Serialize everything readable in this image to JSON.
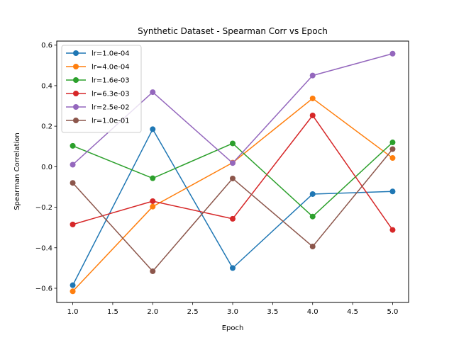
{
  "chart_data": {
    "type": "line",
    "title": "Synthetic Dataset - Spearman Corr vs Epoch",
    "xlabel": "Epoch",
    "ylabel": "Spearman Correlation",
    "x": [
      1.0,
      2.0,
      3.0,
      4.0,
      5.0
    ],
    "xlim": [
      0.8,
      5.2
    ],
    "ylim": [
      -0.67,
      0.62
    ],
    "xticks": [
      1.0,
      1.5,
      2.0,
      2.5,
      3.0,
      3.5,
      4.0,
      4.5,
      5.0
    ],
    "xtick_labels": [
      "1.0",
      "1.5",
      "2.0",
      "2.5",
      "3.0",
      "3.5",
      "4.0",
      "4.5",
      "5.0"
    ],
    "yticks": [
      -0.6,
      -0.4,
      -0.2,
      0.0,
      0.2,
      0.4,
      0.6
    ],
    "ytick_labels": [
      "−0.6",
      "−0.4",
      "−0.2",
      "0.0",
      "0.2",
      "0.4",
      "0.6"
    ],
    "grid": false,
    "legend_position": "top-left",
    "series": [
      {
        "name": "lr=1.0e-04",
        "color": "#1f77b4",
        "values": [
          -0.585,
          0.185,
          -0.5,
          -0.135,
          -0.122
        ]
      },
      {
        "name": "lr=4.0e-04",
        "color": "#ff7f0e",
        "values": [
          -0.615,
          -0.197,
          0.02,
          0.337,
          0.043
        ]
      },
      {
        "name": "lr=1.6e-03",
        "color": "#2ca02c",
        "values": [
          0.103,
          -0.057,
          0.115,
          -0.246,
          0.12
        ]
      },
      {
        "name": "lr=6.3e-03",
        "color": "#d62728",
        "values": [
          -0.285,
          -0.17,
          -0.257,
          0.253,
          -0.312
        ]
      },
      {
        "name": "lr=2.5e-02",
        "color": "#9467bd",
        "values": [
          0.01,
          0.368,
          0.018,
          0.45,
          0.558
        ]
      },
      {
        "name": "lr=1.0e-01",
        "color": "#8c564b",
        "values": [
          -0.08,
          -0.516,
          -0.058,
          -0.394,
          0.087
        ]
      }
    ]
  }
}
